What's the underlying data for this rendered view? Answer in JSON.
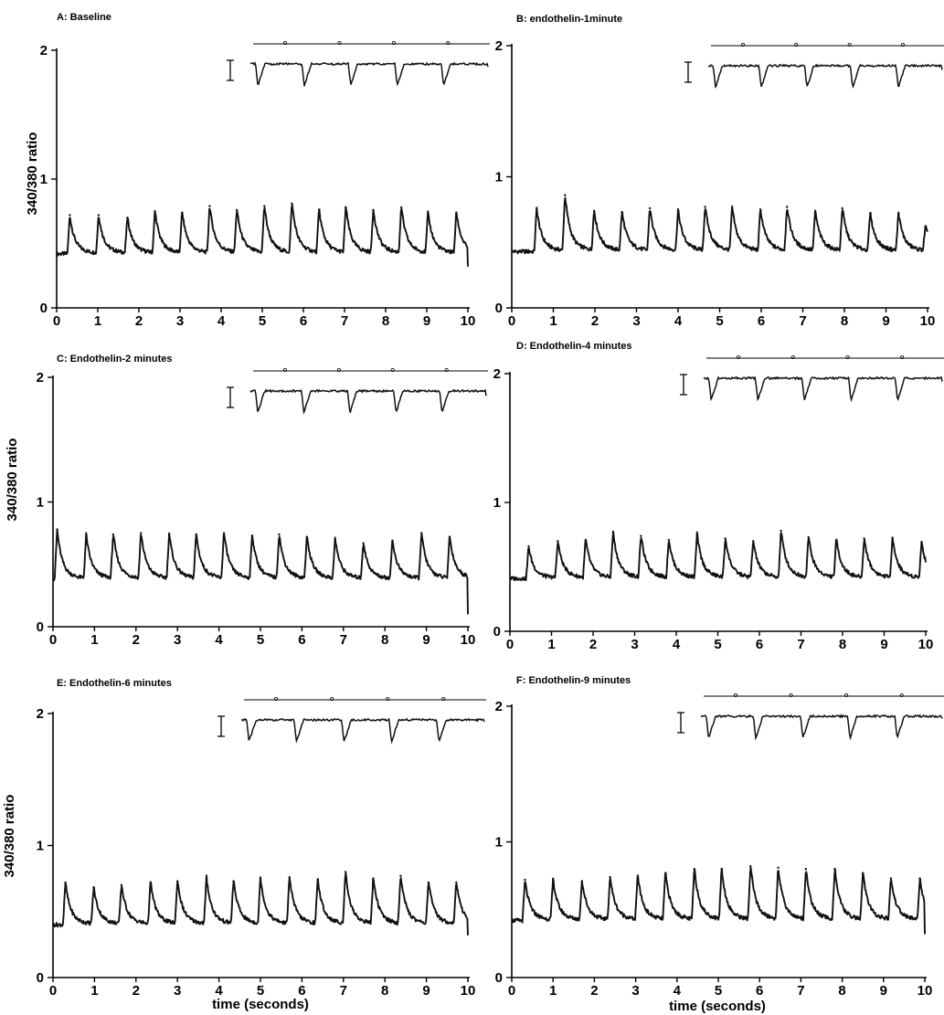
{
  "figure": {
    "y_axis_label": "340/380 ratio",
    "x_axis_label": "time (seconds)",
    "colors": {
      "trace": "#111111",
      "background": "#ffffff"
    }
  },
  "chart_data": [
    {
      "type": "line",
      "title": "A: Baseline",
      "xlim": [
        0,
        10
      ],
      "ylim": [
        0,
        2
      ],
      "x_ticks": [
        "0",
        "1",
        "2",
        "3",
        "4",
        "5",
        "6",
        "7",
        "8",
        "9",
        "10"
      ],
      "y_ticks": [
        "0",
        "1",
        "2"
      ],
      "baseline": 0.42,
      "peak_times": [
        0.32,
        1.02,
        1.72,
        2.39,
        3.05,
        3.72,
        4.38,
        5.05,
        5.72,
        6.38,
        7.03,
        7.7,
        8.38,
        9.03,
        9.72
      ],
      "peak_values": [
        0.72,
        0.72,
        0.7,
        0.75,
        0.74,
        0.79,
        0.76,
        0.79,
        0.81,
        0.76,
        0.78,
        0.76,
        0.78,
        0.73,
        0.74
      ],
      "inset": true
    },
    {
      "type": "line",
      "title": "B: endothelin-1minute",
      "xlim": [
        0,
        10
      ],
      "ylim": [
        0,
        2
      ],
      "x_ticks": [
        "0",
        "1",
        "2",
        "3",
        "4",
        "5",
        "6",
        "7",
        "8",
        "9",
        "10"
      ],
      "y_ticks": [
        "0",
        "1",
        "2"
      ],
      "baseline": 0.43,
      "peak_times": [
        0.6,
        1.28,
        1.98,
        2.65,
        3.32,
        4.0,
        4.65,
        5.3,
        5.98,
        6.62,
        7.3,
        7.95,
        8.62,
        9.3,
        9.95
      ],
      "peak_values": [
        0.76,
        0.86,
        0.74,
        0.73,
        0.76,
        0.74,
        0.77,
        0.76,
        0.75,
        0.77,
        0.73,
        0.76,
        0.72,
        0.72,
        0.62
      ],
      "inset": true
    },
    {
      "type": "line",
      "title": "C: Endothelin-2 minutes",
      "xlim": [
        0,
        10
      ],
      "ylim": [
        0,
        2
      ],
      "x_ticks": [
        "0",
        "1",
        "2",
        "3",
        "4",
        "5",
        "6",
        "7",
        "8",
        "9",
        "10"
      ],
      "y_ticks": [
        "0",
        "1",
        "2"
      ],
      "baseline": 0.38,
      "peak_times": [
        0.1,
        0.8,
        1.45,
        2.12,
        2.8,
        3.45,
        4.12,
        4.8,
        5.45,
        6.12,
        6.8,
        7.48,
        8.18,
        8.88,
        9.56
      ],
      "peak_values": [
        0.78,
        0.73,
        0.74,
        0.75,
        0.74,
        0.74,
        0.75,
        0.73,
        0.74,
        0.72,
        0.7,
        0.67,
        0.69,
        0.75,
        0.72
      ],
      "inset": true
    },
    {
      "type": "line",
      "title": "D: Endothelin-4 minutes",
      "xlim": [
        0,
        10
      ],
      "ylim": [
        0,
        2
      ],
      "x_ticks": [
        "0",
        "1",
        "2",
        "3",
        "4",
        "5",
        "6",
        "7",
        "8",
        "9",
        "10"
      ],
      "y_ticks": [
        "0",
        "1",
        "2"
      ],
      "baseline": 0.41,
      "peak_times": [
        0.45,
        1.15,
        1.82,
        2.48,
        3.15,
        3.82,
        4.5,
        5.18,
        5.85,
        6.52,
        7.18,
        7.85,
        8.52,
        9.2,
        9.9
      ],
      "peak_values": [
        0.66,
        0.7,
        0.71,
        0.77,
        0.74,
        0.71,
        0.75,
        0.72,
        0.7,
        0.78,
        0.73,
        0.71,
        0.72,
        0.72,
        0.69
      ],
      "inset": true
    },
    {
      "type": "line",
      "title": "E: Endothelin-6 minutes",
      "xlim": [
        0,
        10
      ],
      "ylim": [
        0,
        2
      ],
      "x_ticks": [
        "0",
        "1",
        "2",
        "3",
        "4",
        "5",
        "6",
        "7",
        "8",
        "9",
        "10"
      ],
      "y_ticks": [
        "0",
        "1",
        "2"
      ],
      "baseline": 0.4,
      "peak_times": [
        0.3,
        0.98,
        1.65,
        2.35,
        3.0,
        3.7,
        4.35,
        5.0,
        5.7,
        6.38,
        7.05,
        7.72,
        8.38,
        9.05,
        9.72
      ],
      "peak_values": [
        0.72,
        0.68,
        0.7,
        0.72,
        0.73,
        0.75,
        0.73,
        0.75,
        0.76,
        0.74,
        0.8,
        0.75,
        0.77,
        0.72,
        0.72
      ],
      "inset": true
    },
    {
      "type": "line",
      "title": "F: Endothelin-9 minutes",
      "xlim": [
        0,
        10
      ],
      "ylim": [
        0,
        2
      ],
      "x_ticks": [
        "0",
        "1",
        "2",
        "3",
        "4",
        "5",
        "6",
        "7",
        "8",
        "9",
        "10"
      ],
      "y_ticks": [
        "0",
        "1",
        "2"
      ],
      "baseline": 0.42,
      "peak_times": [
        0.32,
        1.0,
        1.7,
        2.38,
        3.05,
        3.72,
        4.42,
        5.08,
        5.78,
        6.45,
        7.12,
        7.82,
        8.5,
        9.18,
        9.88
      ],
      "peak_values": [
        0.72,
        0.72,
        0.71,
        0.74,
        0.75,
        0.77,
        0.8,
        0.8,
        0.82,
        0.81,
        0.8,
        0.8,
        0.77,
        0.73,
        0.73
      ],
      "inset": true
    }
  ]
}
